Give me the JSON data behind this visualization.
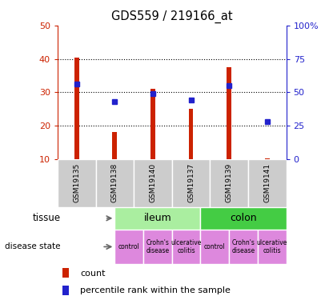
{
  "title": "GDS559 / 219166_at",
  "samples": [
    "GSM19135",
    "GSM19138",
    "GSM19140",
    "GSM19137",
    "GSM19139",
    "GSM19141"
  ],
  "count_values": [
    40.5,
    18.0,
    31.0,
    25.0,
    37.5,
    10.2
  ],
  "percentile_values": [
    56.0,
    43.0,
    49.0,
    44.0,
    55.0,
    28.0
  ],
  "ylim_left": [
    10,
    50
  ],
  "ylim_right": [
    0,
    100
  ],
  "yticks_left": [
    10,
    20,
    30,
    40,
    50
  ],
  "yticks_right": [
    0,
    25,
    50,
    75,
    100
  ],
  "ytick_labels_right": [
    "0",
    "25",
    "50",
    "75",
    "100%"
  ],
  "bar_color": "#cc2200",
  "dot_color": "#2222cc",
  "tissue_groups": [
    {
      "label": "ileum",
      "start": 0,
      "end": 3,
      "color": "#aaeea0"
    },
    {
      "label": "colon",
      "start": 3,
      "end": 6,
      "color": "#44cc44"
    }
  ],
  "disease_groups": [
    {
      "label": "control",
      "start": 0,
      "end": 1,
      "color": "#dd88dd"
    },
    {
      "label": "Crohn's\ndisease",
      "start": 1,
      "end": 2,
      "color": "#dd88dd"
    },
    {
      "label": "ulcerative\ncolitis",
      "start": 2,
      "end": 3,
      "color": "#dd88dd"
    },
    {
      "label": "control",
      "start": 3,
      "end": 4,
      "color": "#dd88dd"
    },
    {
      "label": "Crohn's\ndisease",
      "start": 4,
      "end": 5,
      "color": "#dd88dd"
    },
    {
      "label": "ulcerative\ncolitis",
      "start": 5,
      "end": 6,
      "color": "#dd88dd"
    }
  ],
  "left_axis_color": "#cc2200",
  "right_axis_color": "#2222cc",
  "background_color": "#ffffff",
  "header_bg": "#cccccc",
  "bar_width": 0.12
}
